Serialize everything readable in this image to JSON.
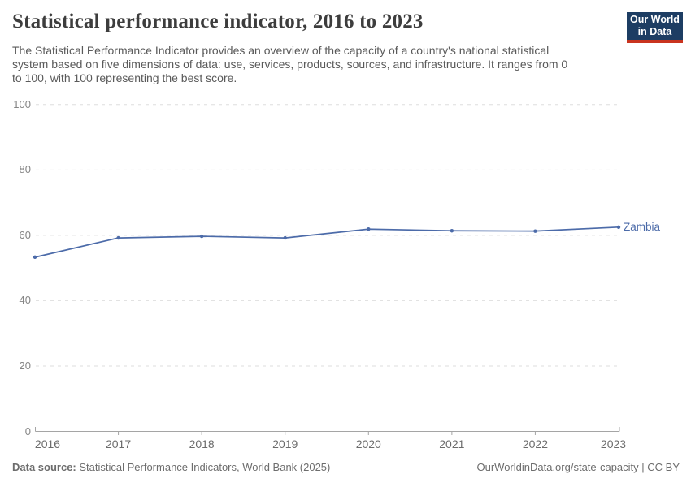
{
  "header": {
    "title": "Statistical performance indicator, 2016 to 2023",
    "subtitle_lines": [
      "The Statistical Performance Indicator provides an overview of the capacity of a country's national statistical",
      "system based on five dimensions of data: use, services, products, sources, and infrastructure. It ranges from 0",
      "to 100, with 100 representing the best score."
    ],
    "logo": {
      "line1": "Our World",
      "line2": "in Data"
    }
  },
  "chart_data": {
    "type": "line",
    "title": "Statistical performance indicator, 2016 to 2023",
    "x": [
      2016,
      2017,
      2018,
      2019,
      2020,
      2021,
      2022,
      2023
    ],
    "series": [
      {
        "name": "Zambia",
        "values": [
          53.3,
          59.2,
          59.7,
          59.2,
          61.9,
          61.4,
          61.3,
          62.5
        ],
        "color": "#4c6ba9"
      }
    ],
    "xlabel": "",
    "ylabel": "",
    "ylim": [
      0,
      100
    ],
    "yticks": [
      0,
      20,
      40,
      60,
      80,
      100
    ],
    "grid": "horizontal-dashed",
    "legend_position": "end-of-line-label"
  },
  "footer": {
    "source_label": "Data source:",
    "source_text": " Statistical Performance Indicators, World Bank (2025)",
    "rights": "OurWorldinData.org/state-capacity | CC BY"
  },
  "colors": {
    "accent_blue": "#4c6ba9",
    "gridline": "#dedede",
    "axis": "#a5a5a5",
    "logo_navy": "#1d3d63",
    "logo_red": "#c9341f",
    "title_text": "#3d3d3d",
    "subtitle_text": "#5a5a5a",
    "y_label": "#858585",
    "x_label": "#6b6b6b",
    "footer_text": "#6d6d6d"
  }
}
